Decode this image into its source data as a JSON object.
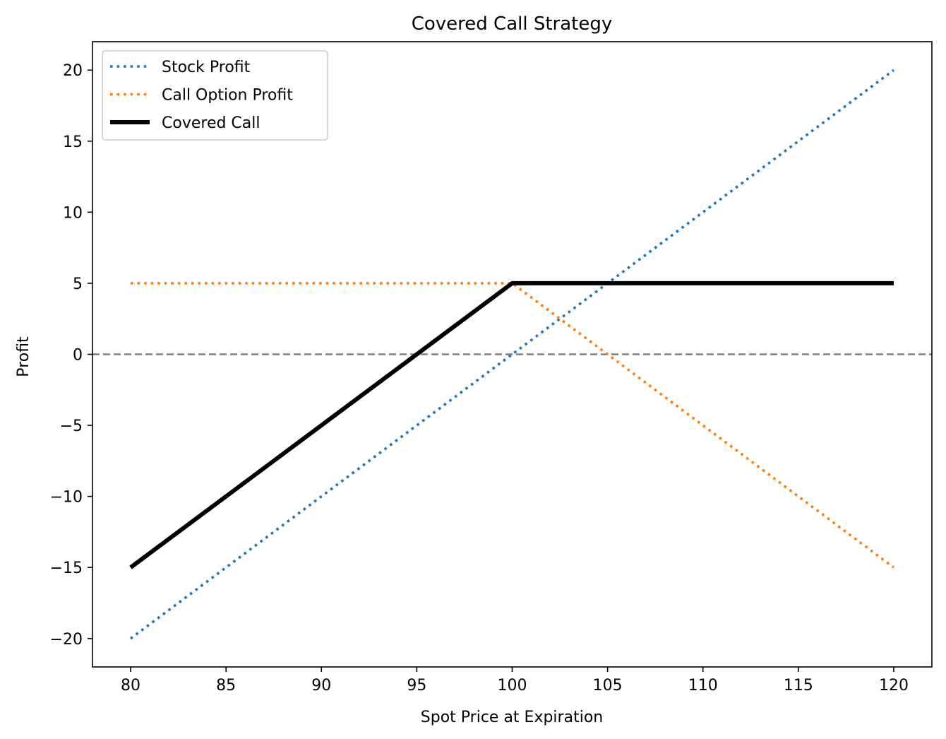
{
  "chart_data": {
    "type": "line",
    "title": "Covered Call Strategy",
    "xlabel": "Spot Price at Expiration",
    "ylabel": "Profit",
    "xlim": [
      78,
      122
    ],
    "ylim": [
      -22,
      22
    ],
    "xticks": [
      80,
      85,
      90,
      95,
      100,
      105,
      110,
      115,
      120
    ],
    "yticks": [
      -20,
      -15,
      -10,
      -5,
      0,
      5,
      10,
      15,
      20
    ],
    "xtick_labels": [
      "80",
      "85",
      "90",
      "95",
      "100",
      "105",
      "110",
      "115",
      "120"
    ],
    "ytick_labels": [
      "−20",
      "−15",
      "−10",
      "−5",
      "0",
      "5",
      "10",
      "15",
      "20"
    ],
    "grid": false,
    "legend_position": "top-left",
    "reference_line": {
      "y": 0,
      "color": "#808080",
      "style": "dashed"
    },
    "series": [
      {
        "name": "Stock Profit",
        "color": "#1f77b4",
        "style": "dotted",
        "x": [
          80,
          120
        ],
        "y": [
          -20,
          20
        ]
      },
      {
        "name": "Call Option Profit",
        "color": "#ff7f0e",
        "style": "dotted",
        "x": [
          80,
          100,
          120
        ],
        "y": [
          5,
          5,
          -15
        ]
      },
      {
        "name": "Covered Call",
        "color": "#000000",
        "style": "solid",
        "x": [
          80,
          100,
          120
        ],
        "y": [
          -15,
          5,
          5
        ]
      }
    ]
  }
}
